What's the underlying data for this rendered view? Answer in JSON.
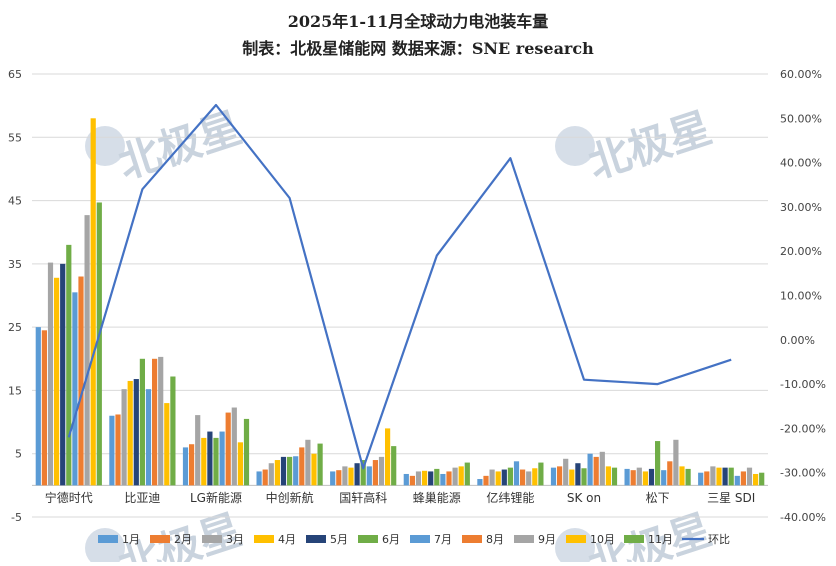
{
  "chart_data": {
    "type": "bar",
    "title": "2025年1-11月全球动力电池装车量",
    "subtitle": "制表：北极星储能网 数据来源：SNE research",
    "categories": [
      "宁德时代",
      "比亚迪",
      "LG新能源",
      "中创新航",
      "国轩高科",
      "蜂巢能源",
      "亿纬锂能",
      "SK on",
      "松下",
      "三星 SDI"
    ],
    "y_left": {
      "ylim": [
        -5,
        65
      ],
      "ticks": [
        -5,
        5,
        15,
        25,
        35,
        45,
        55,
        65
      ]
    },
    "y_right": {
      "ylim": [
        -0.4,
        0.6
      ],
      "ticks": [
        -0.4,
        -0.3,
        -0.2,
        -0.1,
        0,
        0.1,
        0.2,
        0.3,
        0.4,
        0.5,
        0.6
      ],
      "tick_labels": [
        "-40.00%",
        "-30.00%",
        "-20.00%",
        "-10.00%",
        "0.00%",
        "10.00%",
        "20.00%",
        "30.00%",
        "40.00%",
        "50.00%",
        "60.00%"
      ]
    },
    "series": [
      {
        "name": "1月",
        "color": "#5b9bd5",
        "values": [
          25,
          11,
          6,
          2.2,
          2.2,
          1.8,
          1.0,
          2.8,
          2.6,
          2.0
        ]
      },
      {
        "name": "2月",
        "color": "#ed7d31",
        "values": [
          24.5,
          11.2,
          6.5,
          2.5,
          2.4,
          1.5,
          1.5,
          3.0,
          2.4,
          2.2
        ]
      },
      {
        "name": "3月",
        "color": "#a5a5a5",
        "values": [
          35.2,
          15.2,
          11.1,
          3.5,
          3.0,
          2.2,
          2.5,
          4.2,
          2.8,
          3.0
        ]
      },
      {
        "name": "4月",
        "color": "#ffc000",
        "values": [
          32.8,
          16.5,
          7.5,
          4.0,
          2.8,
          2.3,
          2.2,
          2.5,
          2.2,
          2.8
        ]
      },
      {
        "name": "5月",
        "color": "#264478",
        "values": [
          35.0,
          16.8,
          8.5,
          4.5,
          3.5,
          2.2,
          2.5,
          3.5,
          2.6,
          2.8
        ]
      },
      {
        "name": "6月",
        "color": "#70ad47",
        "values": [
          38.0,
          20.0,
          7.5,
          4.5,
          4.0,
          2.6,
          2.8,
          2.7,
          7.0,
          2.8
        ]
      },
      {
        "name": "7月",
        "color": "#5b9bd5",
        "values": [
          30.5,
          15.2,
          8.5,
          4.6,
          3.0,
          1.8,
          3.8,
          5.0,
          2.4,
          1.5
        ]
      },
      {
        "name": "8月",
        "color": "#ed7d31",
        "values": [
          33.0,
          20.0,
          11.5,
          6.0,
          4.0,
          2.2,
          2.5,
          4.5,
          3.8,
          2.2
        ]
      },
      {
        "name": "9月",
        "color": "#a5a5a5",
        "values": [
          42.7,
          20.3,
          12.3,
          7.2,
          4.5,
          2.8,
          2.2,
          5.3,
          7.2,
          2.8
        ]
      },
      {
        "name": "10月",
        "color": "#ffc000",
        "values": [
          58.0,
          13.0,
          6.8,
          5.0,
          9.0,
          3.0,
          2.7,
          3.0,
          3.0,
          1.8
        ]
      },
      {
        "name": "11月",
        "color": "#70ad47",
        "values": [
          44.7,
          17.2,
          10.5,
          6.6,
          6.2,
          3.6,
          3.6,
          2.8,
          2.6,
          2.0
        ]
      }
    ],
    "line": {
      "name": "环比",
      "color": "#4472c4",
      "axis": "right",
      "values": [
        -0.22,
        0.34,
        0.53,
        0.32,
        -0.29,
        0.19,
        0.41,
        -0.09,
        -0.1,
        -0.045
      ]
    },
    "legend_position": "bottom",
    "grid": true,
    "watermark_text": "北极星"
  }
}
